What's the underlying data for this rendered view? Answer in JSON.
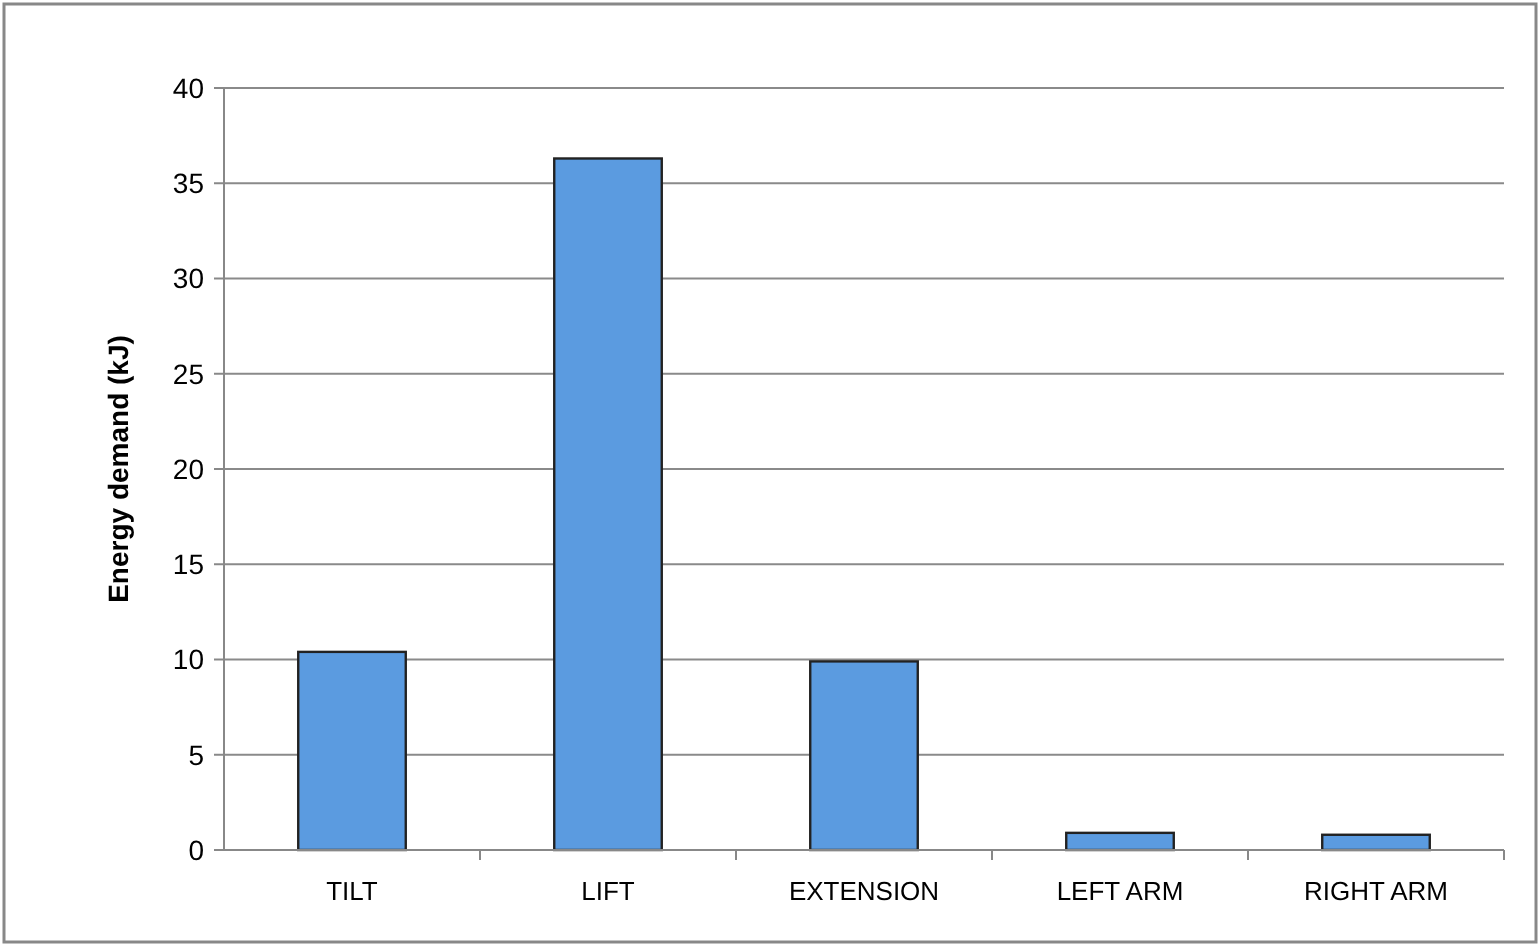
{
  "chart_data": {
    "type": "bar",
    "ylabel": "Energy demand (kJ)",
    "categories": [
      "TILT",
      "LIFT",
      "EXTENSION",
      "LEFT ARM",
      "RIGHT ARM"
    ],
    "values": [
      10.4,
      36.3,
      9.9,
      0.9,
      0.8
    ],
    "color": "#5b9be0",
    "ylim": [
      0,
      40
    ],
    "yticks": [
      0,
      5,
      10,
      15,
      20,
      25,
      30,
      35,
      40
    ],
    "grid": "y"
  }
}
